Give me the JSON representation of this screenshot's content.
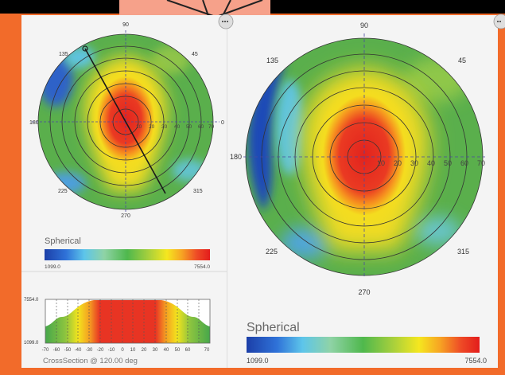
{
  "colors": {
    "frame_orange": "#f26b2a",
    "top_salmon": "#f6a18a",
    "panel_bg": "#f4f4f4",
    "grid_line": "#333333",
    "crosshair": "#4a4aa0",
    "label_gray": "#444444"
  },
  "icons": [
    "ring-line-icon",
    "close-button-icon"
  ],
  "left_map": {
    "angle_labels": {
      "a90": "90",
      "a45": "45",
      "a0": "0",
      "a135": "135",
      "a180": "180",
      "a225": "225",
      "a270": "270",
      "a315": "315"
    },
    "radial_ticks": [
      "10",
      "20",
      "30",
      "40",
      "50",
      "60",
      "70"
    ],
    "section_angle_deg": 120,
    "legend": {
      "title": "Spherical",
      "min": "1099.0",
      "max": "7554.0"
    }
  },
  "cross_section": {
    "y_max_label": "7554.0",
    "y_min_label": "1099.0",
    "x_ticks": [
      "-70",
      "-60",
      "-50",
      "-40",
      "-30",
      "-20",
      "-10",
      "0",
      "10",
      "20",
      "30",
      "40",
      "50",
      "60",
      "70"
    ],
    "caption": "CrossSection @ 120.00 deg"
  },
  "right_map": {
    "angle_labels": {
      "a90": "90",
      "a45": "45",
      "a135": "135",
      "a180": "180",
      "a225": "225",
      "a270": "270",
      "a315": "315"
    },
    "radial_ticks": [
      "10",
      "20",
      "30",
      "40",
      "50",
      "60",
      "70"
    ],
    "legend": {
      "title": "Spherical",
      "min": "1099.0",
      "max": "7554.0"
    }
  }
}
